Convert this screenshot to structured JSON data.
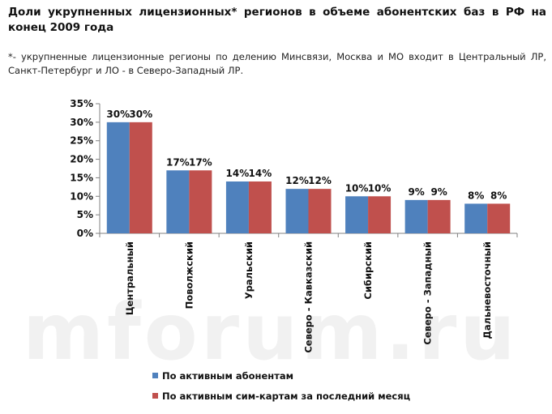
{
  "title": "Доли укрупненных лицензионных* регионов в объеме абонентских баз в РФ на конец 2009 года",
  "note": "*- укрупненные лицензионные регионы по делению Минсвязи, Москва и МО входит в Центральный ЛР, Санкт-Петербург и ЛО - в Северо-Западный ЛР.",
  "watermark": "mforum.ru",
  "chart_data": {
    "type": "bar",
    "categories": [
      "Центральный",
      "Поволжский",
      "Уральский",
      "Северо - Кавказский",
      "Сибирский",
      "Северо - Западный",
      "Дальневосточный"
    ],
    "series": [
      {
        "name": "По активным абонентам",
        "values": [
          30,
          17,
          14,
          12,
          10,
          9,
          8
        ],
        "labels": [
          "30%",
          "17%",
          "14%",
          "12%",
          "10%",
          "9%",
          "8%"
        ],
        "color": "#4f81bd"
      },
      {
        "name": "По активным сим-картам за последний месяц",
        "values": [
          30,
          17,
          14,
          12,
          10,
          9,
          8
        ],
        "labels": [
          "30%",
          "17%",
          "14%",
          "12%",
          "10%",
          "9%",
          "8%"
        ],
        "color": "#c0504d"
      }
    ],
    "ylim": [
      0,
      35
    ],
    "yticks": [
      0,
      5,
      10,
      15,
      20,
      25,
      30,
      35
    ],
    "ytick_labels": [
      "0%",
      "5%",
      "10%",
      "15%",
      "20%",
      "25%",
      "30%",
      "35%"
    ],
    "xlabel": "",
    "ylabel": "",
    "grid": false,
    "legend": "bottom"
  }
}
